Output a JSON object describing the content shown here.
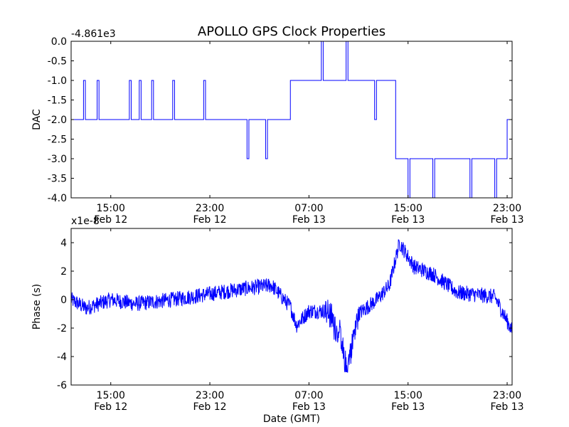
{
  "title": "APOLLO GPS Clock Properties",
  "chart_data": [
    {
      "type": "line",
      "ylabel": "DAC",
      "offset_label": "-4.861e3",
      "ylim": [
        -4.0,
        0.0
      ],
      "yticks": [
        "0.0",
        "-0.5",
        "-1.0",
        "-1.5",
        "-2.0",
        "-2.5",
        "-3.0",
        "-3.5",
        "-4.0"
      ],
      "xticks": [
        {
          "time": "15:00",
          "date": "Feb 12"
        },
        {
          "time": "23:00",
          "date": "Feb 12"
        },
        {
          "time": "07:00",
          "date": "Feb 13"
        },
        {
          "time": "15:00",
          "date": "Feb 13"
        },
        {
          "time": "23:00",
          "date": "Feb 13"
        }
      ],
      "x_range_hours": [
        11.8,
        47.4
      ],
      "grid": false,
      "color": "#0000ff",
      "segments": [
        {
          "from": 11.8,
          "to": 15.0,
          "level": -2,
          "toggles": [
            {
              "at": 12.8,
              "to": -1
            },
            {
              "at": 13.9,
              "to": -1
            }
          ]
        },
        {
          "from": 15.0,
          "to": 18.0,
          "level": -2,
          "toggles": [
            {
              "at": 16.5,
              "to": -1
            },
            {
              "at": 17.3,
              "to": -1
            }
          ]
        },
        {
          "from": 18.0,
          "to": 24.5,
          "level": -2,
          "toggles": [
            {
              "at": 18.3,
              "to": -1
            },
            {
              "at": 20.0,
              "to": -1
            },
            {
              "at": 22.5,
              "to": -1
            }
          ]
        },
        {
          "from": 24.5,
          "to": 29.5,
          "level": -2,
          "toggles": [
            {
              "at": 26.0,
              "to": -3
            },
            {
              "at": 27.5,
              "to": -3
            }
          ]
        },
        {
          "from": 29.5,
          "to": 35.0,
          "level": -1,
          "toggles": [
            {
              "at": 32.0,
              "to": 0
            },
            {
              "at": 34.0,
              "to": 0
            }
          ]
        },
        {
          "from": 35.0,
          "to": 38.0,
          "level": -1,
          "toggles": [
            {
              "at": 36.3,
              "to": -2
            }
          ]
        },
        {
          "from": 38.0,
          "to": 47.0,
          "level": -3,
          "toggles": [
            {
              "at": 39.0,
              "to": -4
            },
            {
              "at": 41.0,
              "to": -4
            },
            {
              "at": 44.0,
              "to": -4
            },
            {
              "at": 46.0,
              "to": -4
            }
          ]
        },
        {
          "from": 47.0,
          "to": 47.4,
          "level": -2,
          "toggles": []
        }
      ]
    },
    {
      "type": "line",
      "ylabel": "Phase (s)",
      "xlabel": "Date (GMT)",
      "offset_label": "x1e-8",
      "ylim": [
        -6,
        5
      ],
      "yticks": [
        "-6",
        "-4",
        "-2",
        "0",
        "2",
        "4"
      ],
      "xticks": [
        {
          "time": "15:00",
          "date": "Feb 12"
        },
        {
          "time": "23:00",
          "date": "Feb 12"
        },
        {
          "time": "07:00",
          "date": "Feb 13"
        },
        {
          "time": "15:00",
          "date": "Feb 13"
        },
        {
          "time": "23:00",
          "date": "Feb 13"
        }
      ],
      "x_range_hours": [
        11.8,
        47.4
      ],
      "grid": false,
      "color": "#0000ff",
      "key_points": [
        {
          "hour": 11.8,
          "value": 0.0
        },
        {
          "hour": 13.0,
          "value": -0.6
        },
        {
          "hour": 15.0,
          "value": 0.0
        },
        {
          "hour": 17.0,
          "value": -0.3
        },
        {
          "hour": 20.0,
          "value": 0.0
        },
        {
          "hour": 23.0,
          "value": 0.4
        },
        {
          "hour": 26.0,
          "value": 0.8
        },
        {
          "hour": 28.0,
          "value": 1.0
        },
        {
          "hour": 29.5,
          "value": -0.5
        },
        {
          "hour": 30.0,
          "value": -1.8
        },
        {
          "hour": 31.0,
          "value": -0.8
        },
        {
          "hour": 32.5,
          "value": -0.8
        },
        {
          "hour": 33.5,
          "value": -2.5
        },
        {
          "hour": 34.0,
          "value": -5.1
        },
        {
          "hour": 35.0,
          "value": -1.0
        },
        {
          "hour": 36.5,
          "value": 0.0
        },
        {
          "hour": 37.5,
          "value": 1.0
        },
        {
          "hour": 38.3,
          "value": 4.0
        },
        {
          "hour": 39.5,
          "value": 2.3
        },
        {
          "hour": 41.0,
          "value": 1.8
        },
        {
          "hour": 43.0,
          "value": 0.5
        },
        {
          "hour": 46.0,
          "value": 0.2
        },
        {
          "hour": 47.4,
          "value": -2.2
        }
      ],
      "min_value": -5.1,
      "max_value": 4.2
    }
  ]
}
